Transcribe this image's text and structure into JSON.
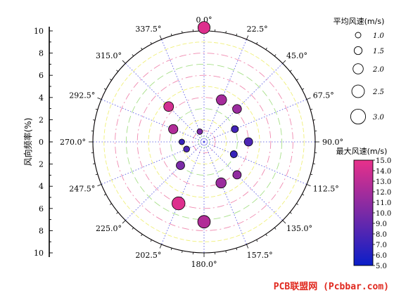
{
  "chart_data": {
    "type": "scatter",
    "subtype": "polar-bubble (wind rose)",
    "title": "",
    "angle_labels": [
      "0.0°",
      "22.5°",
      "45.0°",
      "67.5°",
      "90.0°",
      "112.5°",
      "135.0°",
      "157.5°",
      "180.0°",
      "202.5°",
      "225.0°",
      "247.5°",
      "270.0°",
      "292.5°",
      "315.0°",
      "337.5°"
    ],
    "angle_direction": "clockwise from top",
    "radial_axis": {
      "label": "风向频率(%)",
      "range": [
        0,
        10
      ],
      "ticks_upper": [
        "10",
        "8",
        "6",
        "4",
        "2",
        "0"
      ],
      "ticks_lower": [
        "2",
        "4",
        "6",
        "8",
        "10"
      ]
    },
    "points": [
      {
        "direction": 0.0,
        "frequency": 10.3,
        "mean_speed": 2.4,
        "max_speed": 14.5
      },
      {
        "direction": 22.5,
        "frequency": 4.1,
        "mean_speed": 2.0,
        "max_speed": 12.0
      },
      {
        "direction": 45.0,
        "frequency": 4.2,
        "mean_speed": 1.7,
        "max_speed": 11.5
      },
      {
        "direction": 67.5,
        "frequency": 3.0,
        "mean_speed": 1.3,
        "max_speed": 7.5
      },
      {
        "direction": 90.0,
        "frequency": 4.0,
        "mean_speed": 1.6,
        "max_speed": 8.0
      },
      {
        "direction": 112.5,
        "frequency": 2.9,
        "mean_speed": 1.3,
        "max_speed": 7.0
      },
      {
        "direction": 135.0,
        "frequency": 4.2,
        "mean_speed": 1.6,
        "max_speed": 11.0
      },
      {
        "direction": 157.5,
        "frequency": 4.0,
        "mean_speed": 2.0,
        "max_speed": 11.5
      },
      {
        "direction": 180.0,
        "frequency": 7.2,
        "mean_speed": 2.5,
        "max_speed": 12.5
      },
      {
        "direction": 202.5,
        "frequency": 6.0,
        "mean_speed": 2.6,
        "max_speed": 14.5
      },
      {
        "direction": 225.0,
        "frequency": 3.0,
        "mean_speed": 1.6,
        "max_speed": 10.0
      },
      {
        "direction": 247.5,
        "frequency": 1.7,
        "mean_speed": 1.1,
        "max_speed": 8.0
      },
      {
        "direction": 270.0,
        "frequency": 2.0,
        "mean_speed": 1.0,
        "max_speed": 7.0
      },
      {
        "direction": 292.5,
        "frequency": 3.0,
        "mean_speed": 1.8,
        "max_speed": 12.5
      },
      {
        "direction": 315.0,
        "frequency": 4.5,
        "mean_speed": 1.9,
        "max_speed": 14.0
      },
      {
        "direction": 337.5,
        "frequency": 1.0,
        "mean_speed": 1.0,
        "max_speed": 10.0
      }
    ],
    "size_legend": {
      "title": "平均风速(m/s)",
      "values": [
        1.0,
        1.5,
        2.0,
        2.5,
        3.0
      ],
      "labels": [
        "1.0",
        "1.5",
        "2.0",
        "2.5",
        "3.0"
      ]
    },
    "color_legend": {
      "title": "最大风速(m/s)",
      "range": [
        5.0,
        15.0
      ],
      "labels": [
        "15.0",
        "14.0",
        "13.0",
        "12.0",
        "11.0",
        "10.0",
        "9.0",
        "8.0",
        "7.0",
        "6.0",
        "5.0"
      ],
      "color_low": "#0a1ec8",
      "color_mid": "#7a2aa6",
      "color_high": "#e8308a"
    },
    "grid": "on",
    "grid_colors": {
      "rings_dash": "#f08ab0",
      "rings_green": "#a8e08a",
      "rings_yellow": "#f0f07a",
      "spokes": "#4a4ae0"
    }
  },
  "watermark": "PCB联盟网 (Pcbbar.com)",
  "watermark_color": "#e0281e"
}
